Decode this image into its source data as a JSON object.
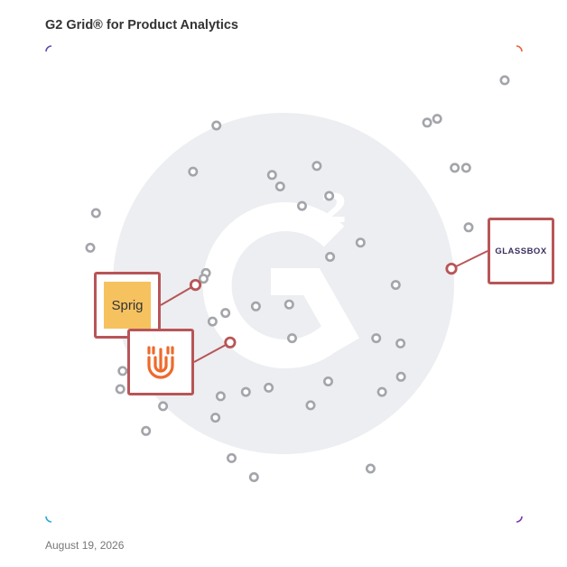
{
  "title": "G2 Grid® for Product Analytics",
  "date": "August 19, 2026",
  "chart_data": {
    "type": "scatter",
    "title": "G2 Grid® for Product Analytics",
    "xlim": [
      0,
      100
    ],
    "ylim": [
      0,
      100
    ],
    "grid": "quadrants",
    "background_mark": "G2",
    "points": [
      {
        "x": 96.4,
        "y": 92.8
      },
      {
        "x": 82.2,
        "y": 84.7
      },
      {
        "x": 80.1,
        "y": 83.9
      },
      {
        "x": 35.8,
        "y": 83.3
      },
      {
        "x": 85.9,
        "y": 74.4
      },
      {
        "x": 88.3,
        "y": 74.4
      },
      {
        "x": 56.9,
        "y": 74.8
      },
      {
        "x": 30.9,
        "y": 73.6
      },
      {
        "x": 47.5,
        "y": 72.9
      },
      {
        "x": 49.2,
        "y": 70.5
      },
      {
        "x": 59.5,
        "y": 68.5
      },
      {
        "x": 53.8,
        "y": 66.4
      },
      {
        "x": 10.5,
        "y": 64.9
      },
      {
        "x": 88.8,
        "y": 61.9
      },
      {
        "x": 66.1,
        "y": 58.7
      },
      {
        "x": 9.3,
        "y": 57.6
      },
      {
        "x": 59.7,
        "y": 55.7
      },
      {
        "x": 33.6,
        "y": 52.3
      },
      {
        "x": 33.1,
        "y": 51.1
      },
      {
        "x": 73.5,
        "y": 49.8
      },
      {
        "x": 51.1,
        "y": 45.7
      },
      {
        "x": 44.1,
        "y": 45.3
      },
      {
        "x": 37.7,
        "y": 43.9
      },
      {
        "x": 35.0,
        "y": 42.1
      },
      {
        "x": 51.7,
        "y": 38.6
      },
      {
        "x": 69.4,
        "y": 38.6
      },
      {
        "x": 74.5,
        "y": 37.5
      },
      {
        "x": 16.1,
        "y": 31.7
      },
      {
        "x": 74.6,
        "y": 30.5
      },
      {
        "x": 59.3,
        "y": 29.5
      },
      {
        "x": 15.6,
        "y": 27.9
      },
      {
        "x": 70.6,
        "y": 27.3
      },
      {
        "x": 46.8,
        "y": 28.2
      },
      {
        "x": 42.0,
        "y": 27.3
      },
      {
        "x": 36.7,
        "y": 26.4
      },
      {
        "x": 24.6,
        "y": 24.3
      },
      {
        "x": 55.6,
        "y": 24.5
      },
      {
        "x": 35.6,
        "y": 21.9
      },
      {
        "x": 21.0,
        "y": 19.1
      },
      {
        "x": 39.0,
        "y": 13.4
      },
      {
        "x": 68.2,
        "y": 11.2
      },
      {
        "x": 43.7,
        "y": 9.4
      }
    ],
    "highlights": [
      {
        "x": 31.4,
        "y": 49.8,
        "logo": "sprig",
        "logo_text": "Sprig"
      },
      {
        "x": 38.7,
        "y": 37.7,
        "logo": "u-mark",
        "logo_text": ""
      },
      {
        "x": 85.2,
        "y": 53.2,
        "logo": "glassbox",
        "logo_text": "GLASSBOX"
      }
    ]
  },
  "colors": {
    "point_stroke": "#a3a5aa",
    "highlight": "#b85557",
    "watermark": "#eceef1",
    "border_top_left": "#5b4fb4",
    "border_top_right": "#e8643b",
    "border_bottom_left": "#2ea6d9",
    "border_bottom_right": "#7b3aa8"
  },
  "icons": {
    "u_mark": "orange-u-logo-icon"
  }
}
